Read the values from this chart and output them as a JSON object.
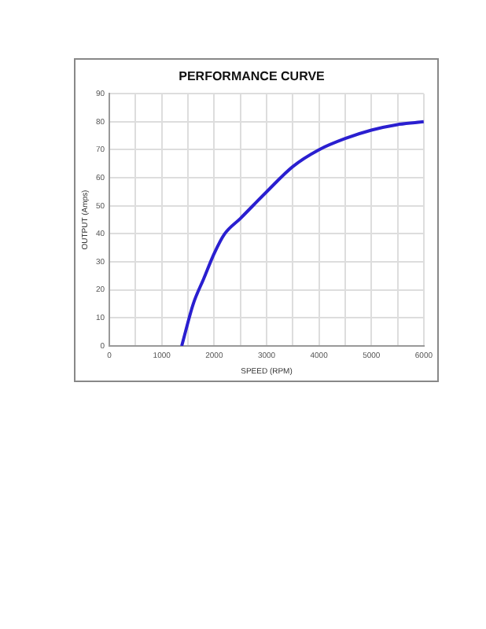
{
  "chart_data": {
    "type": "line",
    "title": "PERFORMANCE CURVE",
    "xlabel": "SPEED (RPM)",
    "ylabel": "OUTPUT (Amps)",
    "x": [
      1380,
      1600,
      1800,
      2000,
      2200,
      2500,
      3000,
      3500,
      4000,
      4500,
      5000,
      5500,
      6000
    ],
    "series": [
      {
        "color": "#2a1fd0",
        "values": [
          0,
          15,
          24,
          33,
          40,
          45.5,
          55,
          64,
          70,
          74,
          77,
          79,
          80
        ]
      }
    ],
    "xlim": [
      0,
      6000
    ],
    "xticks": [
      0,
      {
        "value": 500,
        "label": null
      },
      1000,
      {
        "value": 1500,
        "label": null
      },
      2000,
      {
        "value": 2500,
        "label": null
      },
      3000,
      {
        "value": 3500,
        "label": null
      },
      4000,
      {
        "value": 4500,
        "label": null
      },
      5000,
      {
        "value": 5500,
        "label": null
      },
      6000
    ],
    "ylim": [
      0,
      90
    ],
    "yticks": [
      0,
      10,
      20,
      30,
      40,
      50,
      60,
      70,
      80,
      90
    ],
    "grid": true,
    "legend": false,
    "marker": "none",
    "line_style": "solid"
  }
}
